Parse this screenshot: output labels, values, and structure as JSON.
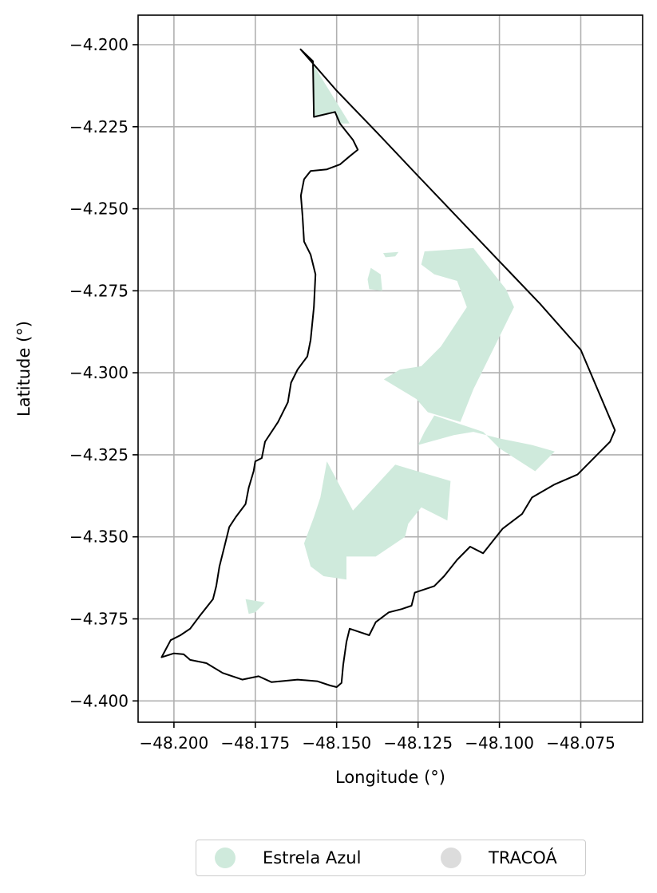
{
  "chart_data": {
    "type": "map",
    "xlabel": "Longitude (°)",
    "ylabel": "Latitude (°)",
    "xlim": [
      -48.211,
      -48.056
    ],
    "ylim": [
      -4.4065,
      -4.191
    ],
    "x_ticks": [
      -48.2,
      -48.175,
      -48.15,
      -48.125,
      -48.1,
      -48.075
    ],
    "y_ticks": [
      -4.2,
      -4.225,
      -4.25,
      -4.275,
      -4.3,
      -4.325,
      -4.35,
      -4.375,
      -4.4
    ],
    "x_tick_labels": [
      "−48.200",
      "−48.175",
      "−48.150",
      "−48.125",
      "−48.100",
      "−48.075"
    ],
    "y_tick_labels": [
      "−4.200",
      "−4.225",
      "−4.250",
      "−4.275",
      "−4.300",
      "−4.325",
      "−4.350",
      "−4.375",
      "−4.400"
    ],
    "grid": true,
    "legend_position": "bottom-center",
    "legend": [
      {
        "name": "Estrela Azul",
        "color": "#cfeadc"
      },
      {
        "name": "TRACOÁ",
        "color": "#dcdcdc"
      }
    ],
    "boundary": [
      [
        -48.1611,
        -4.2014
      ],
      [
        -48.15,
        -4.214
      ],
      [
        -48.1375,
        -4.2269
      ],
      [
        -48.125,
        -4.24
      ],
      [
        -48.1125,
        -4.253
      ],
      [
        -48.1,
        -4.266
      ],
      [
        -48.0875,
        -4.279
      ],
      [
        -48.075,
        -4.293
      ],
      [
        -48.0645,
        -4.3175
      ],
      [
        -48.066,
        -4.321
      ],
      [
        -48.07,
        -4.325
      ],
      [
        -48.076,
        -4.331
      ],
      [
        -48.083,
        -4.334
      ],
      [
        -48.09,
        -4.338
      ],
      [
        -48.093,
        -4.343
      ],
      [
        -48.099,
        -4.3475
      ],
      [
        -48.105,
        -4.355
      ],
      [
        -48.109,
        -4.353
      ],
      [
        -48.113,
        -4.357
      ],
      [
        -48.117,
        -4.362
      ],
      [
        -48.12,
        -4.365
      ],
      [
        -48.126,
        -4.367
      ],
      [
        -48.127,
        -4.371
      ],
      [
        -48.13,
        -4.372
      ],
      [
        -48.134,
        -4.373
      ],
      [
        -48.138,
        -4.376
      ],
      [
        -48.14,
        -4.38
      ],
      [
        -48.143,
        -4.379
      ],
      [
        -48.146,
        -4.378
      ],
      [
        -48.147,
        -4.382
      ],
      [
        -48.148,
        -4.389
      ],
      [
        -48.1485,
        -4.3945
      ],
      [
        -48.15,
        -4.3958
      ],
      [
        -48.152,
        -4.3953
      ],
      [
        -48.156,
        -4.394
      ],
      [
        -48.162,
        -4.3935
      ],
      [
        -48.17,
        -4.3943
      ],
      [
        -48.174,
        -4.3925
      ],
      [
        -48.179,
        -4.3935
      ],
      [
        -48.185,
        -4.3915
      ],
      [
        -48.19,
        -4.3885
      ],
      [
        -48.195,
        -4.3875
      ],
      [
        -48.197,
        -4.3858
      ],
      [
        -48.2,
        -4.3855
      ],
      [
        -48.2038,
        -4.3867
      ],
      [
        -48.201,
        -4.3815
      ],
      [
        -48.198,
        -4.38
      ],
      [
        -48.195,
        -4.378
      ],
      [
        -48.192,
        -4.374
      ],
      [
        -48.188,
        -4.369
      ],
      [
        -48.187,
        -4.365
      ],
      [
        -48.186,
        -4.359
      ],
      [
        -48.1845,
        -4.353
      ],
      [
        -48.183,
        -4.347
      ],
      [
        -48.181,
        -4.344
      ],
      [
        -48.178,
        -4.34
      ],
      [
        -48.177,
        -4.335
      ],
      [
        -48.1755,
        -4.33
      ],
      [
        -48.175,
        -4.327
      ],
      [
        -48.173,
        -4.326
      ],
      [
        -48.172,
        -4.321
      ],
      [
        -48.168,
        -4.315
      ],
      [
        -48.165,
        -4.309
      ],
      [
        -48.164,
        -4.303
      ],
      [
        -48.162,
        -4.299
      ],
      [
        -48.159,
        -4.295
      ],
      [
        -48.158,
        -4.29
      ],
      [
        -48.157,
        -4.28
      ],
      [
        -48.1565,
        -4.27
      ],
      [
        -48.158,
        -4.264
      ],
      [
        -48.16,
        -4.26
      ],
      [
        -48.1605,
        -4.252
      ],
      [
        -48.161,
        -4.246
      ],
      [
        -48.16,
        -4.241
      ],
      [
        -48.158,
        -4.2385
      ],
      [
        -48.153,
        -4.238
      ],
      [
        -48.149,
        -4.2365
      ],
      [
        -48.146,
        -4.234
      ],
      [
        -48.1435,
        -4.232
      ],
      [
        -48.145,
        -4.229
      ],
      [
        -48.149,
        -4.224
      ],
      [
        -48.1505,
        -4.2205
      ],
      [
        -48.157,
        -4.222
      ],
      [
        -48.1573,
        -4.205
      ],
      [
        -48.1611,
        -4.2014
      ]
    ],
    "estrela_azul_areas": [
      [
        [
          -48.1585,
          -4.204
        ],
        [
          -48.146,
          -4.224
        ],
        [
          -48.149,
          -4.224
        ],
        [
          -48.1505,
          -4.2205
        ],
        [
          -48.157,
          -4.222
        ],
        [
          -48.1573,
          -4.205
        ]
      ],
      [
        [
          -48.1395,
          -4.268
        ],
        [
          -48.1365,
          -4.27
        ],
        [
          -48.136,
          -4.275
        ],
        [
          -48.14,
          -4.2745
        ],
        [
          -48.1405,
          -4.2715
        ]
      ],
      [
        [
          -48.1357,
          -4.2635
        ],
        [
          -48.131,
          -4.2632
        ],
        [
          -48.132,
          -4.2645
        ],
        [
          -48.135,
          -4.2648
        ]
      ],
      [
        [
          -48.123,
          -4.263
        ],
        [
          -48.108,
          -4.262
        ],
        [
          -48.098,
          -4.2745
        ],
        [
          -48.0955,
          -4.28
        ],
        [
          -48.103,
          -4.295
        ],
        [
          -48.108,
          -4.305
        ],
        [
          -48.112,
          -4.315
        ],
        [
          -48.122,
          -4.312
        ],
        [
          -48.1255,
          -4.308
        ],
        [
          -48.1355,
          -4.302
        ],
        [
          -48.1305,
          -4.299
        ],
        [
          -48.124,
          -4.298
        ],
        [
          -48.118,
          -4.292
        ],
        [
          -48.11,
          -4.28
        ],
        [
          -48.113,
          -4.272
        ],
        [
          -48.12,
          -4.27
        ],
        [
          -48.124,
          -4.267
        ]
      ],
      [
        [
          -48.12,
          -4.313
        ],
        [
          -48.105,
          -4.318
        ],
        [
          -48.1,
          -4.323
        ],
        [
          -48.089,
          -4.33
        ],
        [
          -48.083,
          -4.324
        ],
        [
          -48.09,
          -4.322
        ],
        [
          -48.1,
          -4.32
        ],
        [
          -48.108,
          -4.318
        ],
        [
          -48.114,
          -4.319
        ],
        [
          -48.125,
          -4.322
        ],
        [
          -48.123,
          -4.318
        ]
      ],
      [
        [
          -48.153,
          -4.327
        ],
        [
          -48.145,
          -4.342
        ],
        [
          -48.132,
          -4.328
        ],
        [
          -48.115,
          -4.333
        ],
        [
          -48.116,
          -4.345
        ],
        [
          -48.124,
          -4.341
        ],
        [
          -48.128,
          -4.346
        ],
        [
          -48.129,
          -4.35
        ],
        [
          -48.138,
          -4.356
        ],
        [
          -48.147,
          -4.356
        ],
        [
          -48.147,
          -4.363
        ],
        [
          -48.154,
          -4.362
        ],
        [
          -48.158,
          -4.359
        ],
        [
          -48.16,
          -4.352
        ],
        [
          -48.157,
          -4.344
        ],
        [
          -48.155,
          -4.338
        ]
      ],
      [
        [
          -48.178,
          -4.369
        ],
        [
          -48.172,
          -4.37
        ],
        [
          -48.175,
          -4.373
        ],
        [
          -48.177,
          -4.3735
        ]
      ]
    ]
  }
}
